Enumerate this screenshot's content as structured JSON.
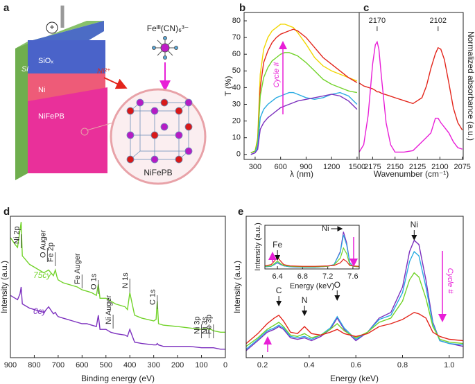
{
  "diagram": {
    "panel_label": "a",
    "plus": "+",
    "precursor": "Feᴵᴵᴵ(CN)₆³⁻",
    "layers": [
      "Si",
      "SiOₓ",
      "Ni",
      "NiFePB"
    ],
    "ion": "Ni²⁺",
    "lattice_label": "NiFePB"
  },
  "chart_data": [
    {
      "type": "line",
      "panel_label": "b",
      "x_label": "λ (nm)",
      "y_label": "T (%)",
      "annotation": "Cycle #",
      "x": [
        250,
        300,
        330,
        360,
        400,
        450,
        500,
        550,
        600,
        650,
        700,
        750,
        800,
        900,
        1000,
        1100,
        1200,
        1300,
        1400,
        1500
      ],
      "series": [
        {
          "color": "#f2d600",
          "values": [
            1,
            2,
            10,
            48,
            63,
            70,
            74,
            76,
            78,
            78,
            77,
            76,
            73,
            66,
            58,
            53,
            50,
            48,
            46,
            44
          ]
        },
        {
          "color": "#e3251b",
          "values": [
            1,
            2,
            8,
            40,
            55,
            62,
            67,
            70,
            72,
            73,
            74,
            75,
            74,
            70,
            64,
            58,
            54,
            50,
            46,
            43
          ]
        },
        {
          "color": "#72d32a",
          "values": [
            1,
            2,
            8,
            35,
            46,
            52,
            56,
            58,
            60,
            61,
            61,
            60,
            59,
            55,
            50,
            45,
            42,
            40,
            38,
            37
          ]
        },
        {
          "color": "#29abe2",
          "values": [
            0,
            1,
            5,
            22,
            27,
            30,
            32,
            34,
            35,
            36,
            37,
            37,
            36,
            34,
            33,
            34,
            36,
            37,
            35,
            30
          ]
        },
        {
          "color": "#7b2fbe",
          "values": [
            0,
            1,
            3,
            15,
            19,
            22,
            24,
            26,
            28,
            29,
            30,
            31,
            32,
            33,
            34,
            35,
            36,
            35,
            32,
            27
          ]
        }
      ],
      "xlim": [
        170,
        1525
      ],
      "ylim": [
        -3,
        85
      ],
      "xticks": [
        300,
        600,
        900,
        1200,
        1500
      ],
      "yticks": [
        0,
        10,
        20,
        30,
        40,
        50,
        60,
        70,
        80
      ]
    },
    {
      "type": "line",
      "panel_label": "c",
      "x_label": "Wavenumber (cm⁻¹)",
      "y_label": "Normalized absorbance (a.u.)",
      "x": [
        2190,
        2185,
        2180,
        2175,
        2172,
        2170,
        2168,
        2165,
        2160,
        2155,
        2150,
        2140,
        2130,
        2120,
        2115,
        2110,
        2105,
        2102,
        2099,
        2095,
        2090,
        2085,
        2080,
        2075
      ],
      "series": [
        {
          "color": "#e3251b",
          "values": [
            0.52,
            0.5,
            0.49,
            0.48,
            0.47,
            0.46,
            0.46,
            0.45,
            0.44,
            0.43,
            0.42,
            0.4,
            0.38,
            0.42,
            0.5,
            0.62,
            0.72,
            0.76,
            0.75,
            0.68,
            0.52,
            0.35,
            0.25,
            0.2
          ]
        },
        {
          "color": "#e81ed7",
          "values": [
            0.05,
            0.1,
            0.3,
            0.65,
            0.78,
            0.8,
            0.75,
            0.55,
            0.25,
            0.1,
            0.05,
            0.05,
            0.06,
            0.12,
            0.15,
            0.18,
            0.28,
            0.28,
            0.25,
            0.22,
            0.18,
            0.12,
            0.08,
            0.07
          ]
        }
      ],
      "peak_ticks": [
        2170,
        2102
      ],
      "xlim": [
        2190,
        2074
      ],
      "ylim": [
        0,
        1
      ],
      "xticks": [
        2175,
        2150,
        2125,
        2100,
        2075
      ]
    },
    {
      "type": "line",
      "panel_label": "d",
      "x_label": "Binding energy (eV)",
      "y_label": "Intensity (a.u.)",
      "x": [
        900,
        880,
        870,
        860,
        855,
        850,
        840,
        820,
        800,
        780,
        760,
        740,
        720,
        712,
        705,
        700,
        680,
        660,
        640,
        620,
        600,
        580,
        560,
        540,
        532,
        525,
        500,
        480,
        460,
        420,
        410,
        400,
        380,
        350,
        300,
        290,
        285,
        280,
        260,
        200,
        150,
        100,
        80,
        70,
        60,
        50,
        20,
        0
      ],
      "series": [
        {
          "name": "75cy",
          "color": "#72d32a",
          "values": [
            0.85,
            0.8,
            0.78,
            0.9,
            0.96,
            0.72,
            0.7,
            0.66,
            0.64,
            0.62,
            0.6,
            0.62,
            0.58,
            0.62,
            0.57,
            0.55,
            0.53,
            0.52,
            0.51,
            0.5,
            0.48,
            0.47,
            0.46,
            0.44,
            0.52,
            0.42,
            0.42,
            0.4,
            0.38,
            0.36,
            0.34,
            0.46,
            0.3,
            0.28,
            0.26,
            0.27,
            0.4,
            0.24,
            0.23,
            0.22,
            0.21,
            0.2,
            0.21,
            0.2,
            0.2,
            0.19,
            0.18,
            0.18
          ]
        },
        {
          "name": "0cy",
          "color": "#7b2fbe",
          "values": [
            0.44,
            0.42,
            0.41,
            0.45,
            0.5,
            0.38,
            0.37,
            0.35,
            0.34,
            0.33,
            0.32,
            0.36,
            0.31,
            0.32,
            0.3,
            0.29,
            0.28,
            0.27,
            0.26,
            0.25,
            0.24,
            0.24,
            0.23,
            0.22,
            0.3,
            0.2,
            0.2,
            0.18,
            0.17,
            0.16,
            0.15,
            0.2,
            0.11,
            0.1,
            0.09,
            0.09,
            0.1,
            0.09,
            0.08,
            0.08,
            0.08,
            0.07,
            0.07,
            0.07,
            0.07,
            0.07,
            0.06,
            0.06
          ]
        }
      ],
      "annotations": [
        {
          "text": "Ni 2p",
          "x": 855
        },
        {
          "text": "O Auger",
          "x": 745
        },
        {
          "text": "Fe 2p",
          "x": 712
        },
        {
          "text": "Fe Auger",
          "x": 600
        },
        {
          "text": "O 1s",
          "x": 532
        },
        {
          "text": "Ni Auger",
          "x": 470
        },
        {
          "text": "N 1s",
          "x": 400
        },
        {
          "text": "C 1s",
          "x": 285
        },
        {
          "text": "Ni 3p",
          "x": 100
        },
        {
          "text": "Ni 3s",
          "x": 68
        },
        {
          "text": "Fe 3p",
          "x": 50
        }
      ],
      "xlim": [
        900,
        0
      ],
      "ylim": [
        0,
        1
      ],
      "xticks": [
        900,
        800,
        700,
        600,
        500,
        400,
        300,
        200,
        100,
        0
      ]
    },
    {
      "type": "line",
      "panel_label": "e",
      "x_label": "Energy (keV)",
      "y_label": "Intensity (a.u.)",
      "annotation": "Cycle #",
      "x": [
        0.13,
        0.18,
        0.22,
        0.25,
        0.27,
        0.29,
        0.32,
        0.35,
        0.38,
        0.41,
        0.45,
        0.49,
        0.52,
        0.55,
        0.6,
        0.65,
        0.7,
        0.75,
        0.8,
        0.83,
        0.85,
        0.87,
        0.9,
        0.93,
        0.96,
        1.0,
        1.06
      ],
      "series": [
        {
          "color": "#7b2fbe",
          "values": [
            0.05,
            0.12,
            0.18,
            0.2,
            0.22,
            0.2,
            0.14,
            0.13,
            0.14,
            0.12,
            0.15,
            0.2,
            0.28,
            0.2,
            0.12,
            0.18,
            0.28,
            0.32,
            0.5,
            0.75,
            0.83,
            0.8,
            0.55,
            0.25,
            0.12,
            0.1,
            0.08
          ]
        },
        {
          "color": "#29abe2",
          "values": [
            0.06,
            0.13,
            0.19,
            0.21,
            0.23,
            0.21,
            0.15,
            0.14,
            0.15,
            0.13,
            0.16,
            0.21,
            0.29,
            0.21,
            0.13,
            0.18,
            0.27,
            0.3,
            0.46,
            0.68,
            0.75,
            0.72,
            0.5,
            0.24,
            0.12,
            0.1,
            0.09
          ]
        },
        {
          "color": "#72d32a",
          "values": [
            0.08,
            0.14,
            0.2,
            0.23,
            0.25,
            0.22,
            0.16,
            0.15,
            0.17,
            0.14,
            0.16,
            0.2,
            0.24,
            0.19,
            0.14,
            0.18,
            0.25,
            0.28,
            0.4,
            0.55,
            0.6,
            0.57,
            0.42,
            0.22,
            0.13,
            0.11,
            0.1
          ]
        },
        {
          "color": "#e3251b",
          "values": [
            0.1,
            0.17,
            0.24,
            0.28,
            0.3,
            0.26,
            0.18,
            0.17,
            0.22,
            0.17,
            0.16,
            0.18,
            0.2,
            0.17,
            0.15,
            0.17,
            0.22,
            0.24,
            0.27,
            0.3,
            0.32,
            0.31,
            0.28,
            0.18,
            0.15,
            0.13,
            0.12
          ]
        }
      ],
      "annotations": [
        {
          "text": "C",
          "x": 0.27
        },
        {
          "text": "N",
          "x": 0.38
        },
        {
          "text": "O",
          "x": 0.52
        },
        {
          "text": "Ni",
          "x": 0.85
        }
      ],
      "xlim": [
        0.13,
        1.06
      ],
      "ylim": [
        0,
        1
      ],
      "xticks": [
        0.2,
        0.4,
        0.6,
        0.8,
        {
          "value": 1,
          "label": "1.0"
        }
      ]
    },
    {
      "type": "line",
      "x_label": "Energy (keV)",
      "y_label": "Intensity (a.u.)",
      "x": [
        6.2,
        6.3,
        6.35,
        6.4,
        6.45,
        6.5,
        6.6,
        6.8,
        7.0,
        7.2,
        7.3,
        7.4,
        7.45,
        7.5,
        7.55,
        7.6,
        7.7
      ],
      "series": [
        {
          "color": "#7b2fbe",
          "values": [
            0.05,
            0.06,
            0.1,
            0.14,
            0.1,
            0.07,
            0.05,
            0.04,
            0.04,
            0.06,
            0.1,
            0.4,
            0.85,
            0.6,
            0.15,
            0.06,
            0.05
          ]
        },
        {
          "color": "#29abe2",
          "values": [
            0.05,
            0.06,
            0.1,
            0.15,
            0.11,
            0.07,
            0.05,
            0.04,
            0.04,
            0.06,
            0.1,
            0.38,
            0.78,
            0.55,
            0.14,
            0.06,
            0.05
          ]
        },
        {
          "color": "#72d32a",
          "values": [
            0.06,
            0.07,
            0.12,
            0.18,
            0.12,
            0.08,
            0.06,
            0.05,
            0.05,
            0.06,
            0.09,
            0.25,
            0.48,
            0.35,
            0.1,
            0.06,
            0.05
          ]
        },
        {
          "color": "#e3251b",
          "values": [
            0.07,
            0.1,
            0.18,
            0.27,
            0.18,
            0.1,
            0.07,
            0.06,
            0.06,
            0.07,
            0.08,
            0.14,
            0.22,
            0.17,
            0.08,
            0.07,
            0.06
          ]
        }
      ],
      "annotations": [
        {
          "text": "Fe",
          "x": 6.4
        },
        {
          "text": "Ni",
          "x": 7.45
        }
      ],
      "xlim": [
        6.2,
        7.7
      ],
      "ylim": [
        0,
        1
      ],
      "xticks": [
        6.4,
        6.8,
        7.2,
        7.6
      ]
    }
  ]
}
